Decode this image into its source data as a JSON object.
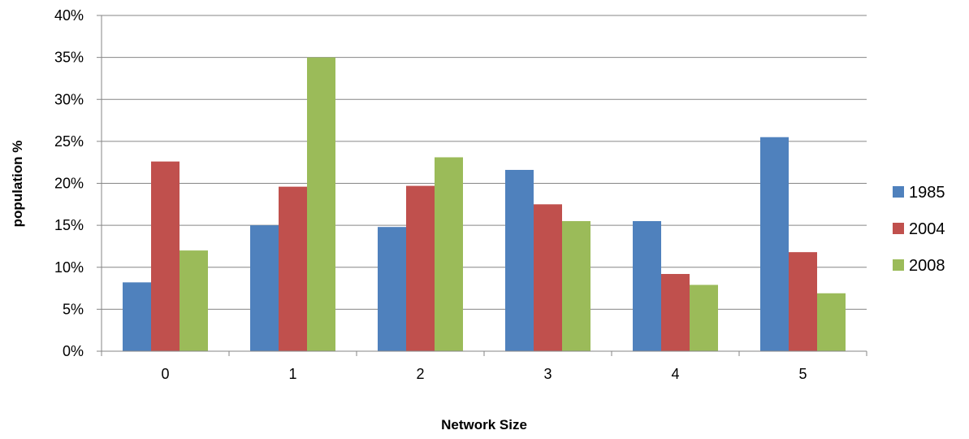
{
  "chart_data": {
    "type": "bar",
    "title": "",
    "xlabel": "Network Size",
    "ylabel": "population %",
    "categories": [
      "0",
      "1",
      "2",
      "3",
      "4",
      "5"
    ],
    "series": [
      {
        "name": "1985",
        "color": "#4F81BD",
        "values": [
          8.2,
          15.0,
          14.8,
          21.6,
          15.5,
          25.5
        ]
      },
      {
        "name": "2004",
        "color": "#C0504D",
        "values": [
          22.6,
          19.6,
          19.7,
          17.5,
          9.2,
          11.8
        ]
      },
      {
        "name": "2008",
        "color": "#9BBB59",
        "values": [
          12.0,
          35.0,
          23.1,
          15.5,
          7.9,
          6.9
        ]
      }
    ],
    "ylim": [
      0,
      40
    ],
    "yticks": [
      "0%",
      "5%",
      "10%",
      "15%",
      "20%",
      "25%",
      "30%",
      "35%",
      "40%"
    ],
    "grid": true,
    "legend": "right"
  }
}
